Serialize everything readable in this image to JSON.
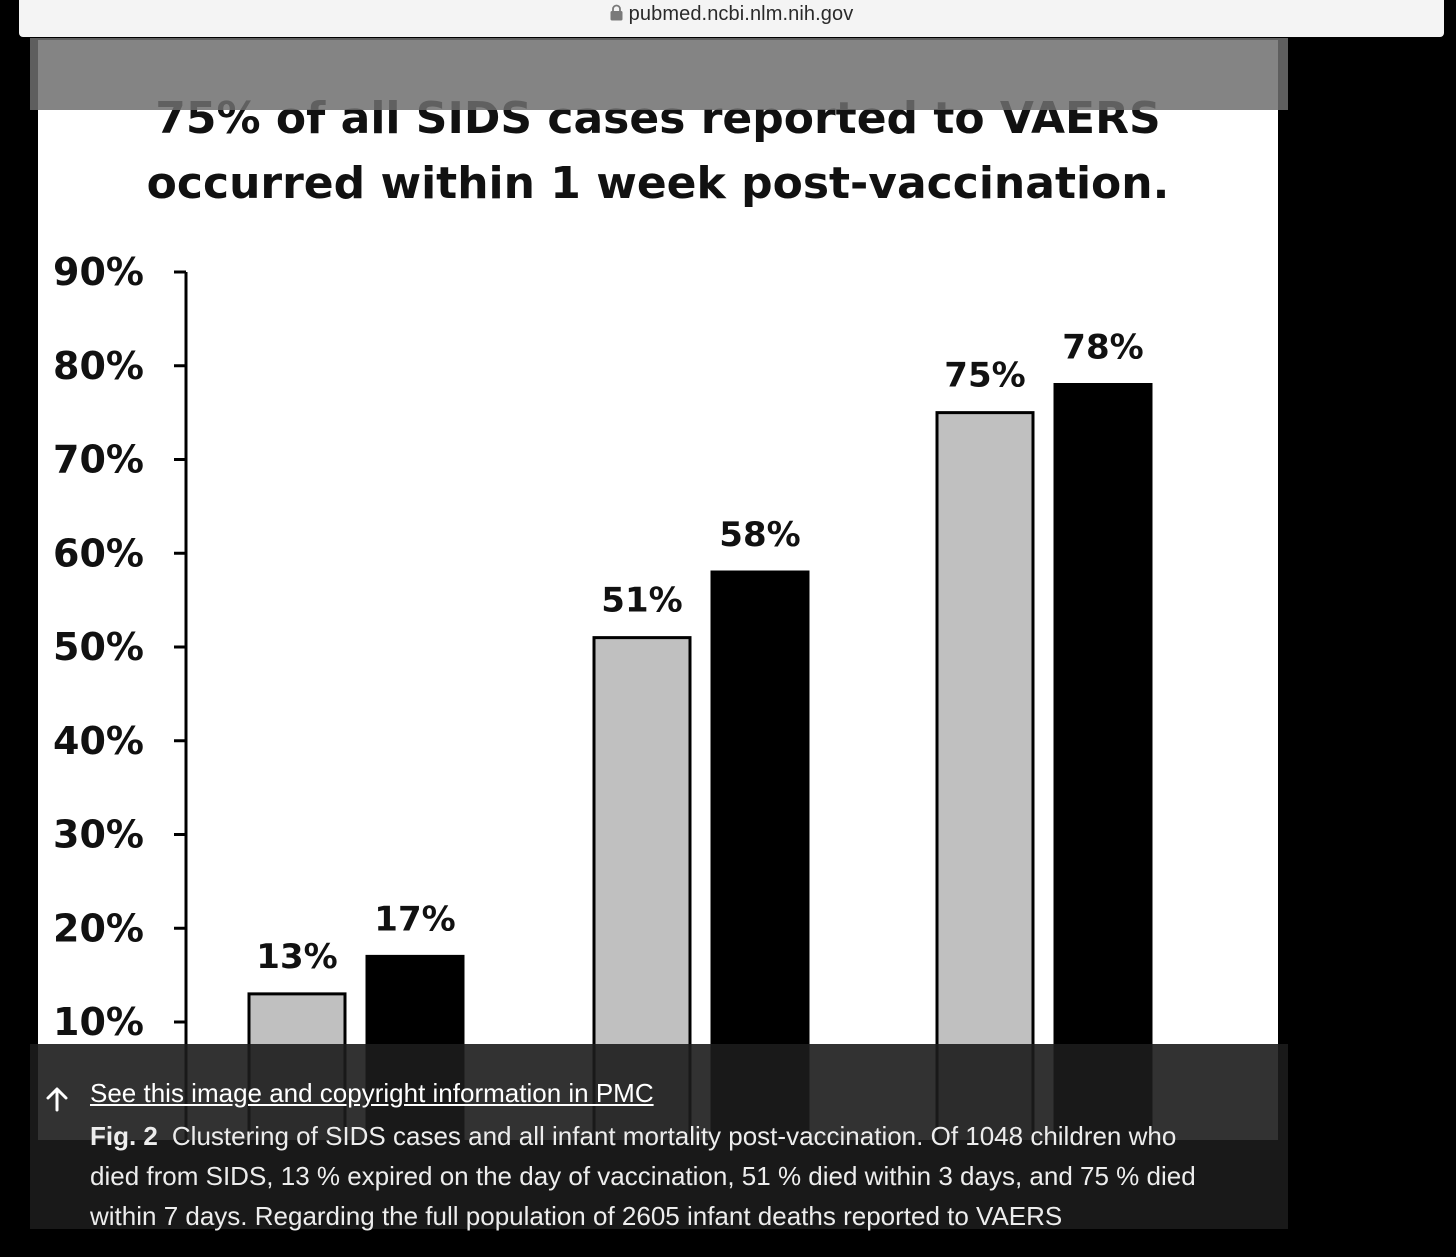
{
  "browser": {
    "url": "pubmed.ncbi.nlm.nih.gov"
  },
  "figure": {
    "link_text": "See this image and copyright information in PMC",
    "fig_label": "Fig. 2",
    "caption": "Clustering of SIDS cases and all infant mortality post-vaccination. Of 1048 children who died from SIDS, 13 % expired on the day of vaccination, 51 % died within 3 days, and 75 % died within 7 days. Regarding the full population of 2605 infant deaths reported to VAERS"
  },
  "chart_data": {
    "type": "bar",
    "title": "75% of all SIDS cases reported to VAERS occurred within 1 week post-vaccination.",
    "title_lines": [
      "75% of all SIDS cases reported to VAERS",
      "occurred within 1 week post-vaccination."
    ],
    "ylim": [
      0,
      90
    ],
    "yticks": [
      10,
      20,
      30,
      40,
      50,
      60,
      70,
      80,
      90
    ],
    "ytick_labels": [
      "10%",
      "20%",
      "30%",
      "40%",
      "50%",
      "60%",
      "70%",
      "80%",
      "90%"
    ],
    "categories": [
      "",
      "",
      ""
    ],
    "series": [
      {
        "values": [
          13,
          51,
          75
        ],
        "labels": [
          "13%",
          "51%",
          "75%"
        ],
        "color": "#c0c0c0"
      },
      {
        "values": [
          17,
          58,
          78
        ],
        "labels": [
          "17%",
          "58%",
          "78%"
        ],
        "color": "#000000"
      }
    ],
    "grid": false,
    "legend": "none"
  }
}
